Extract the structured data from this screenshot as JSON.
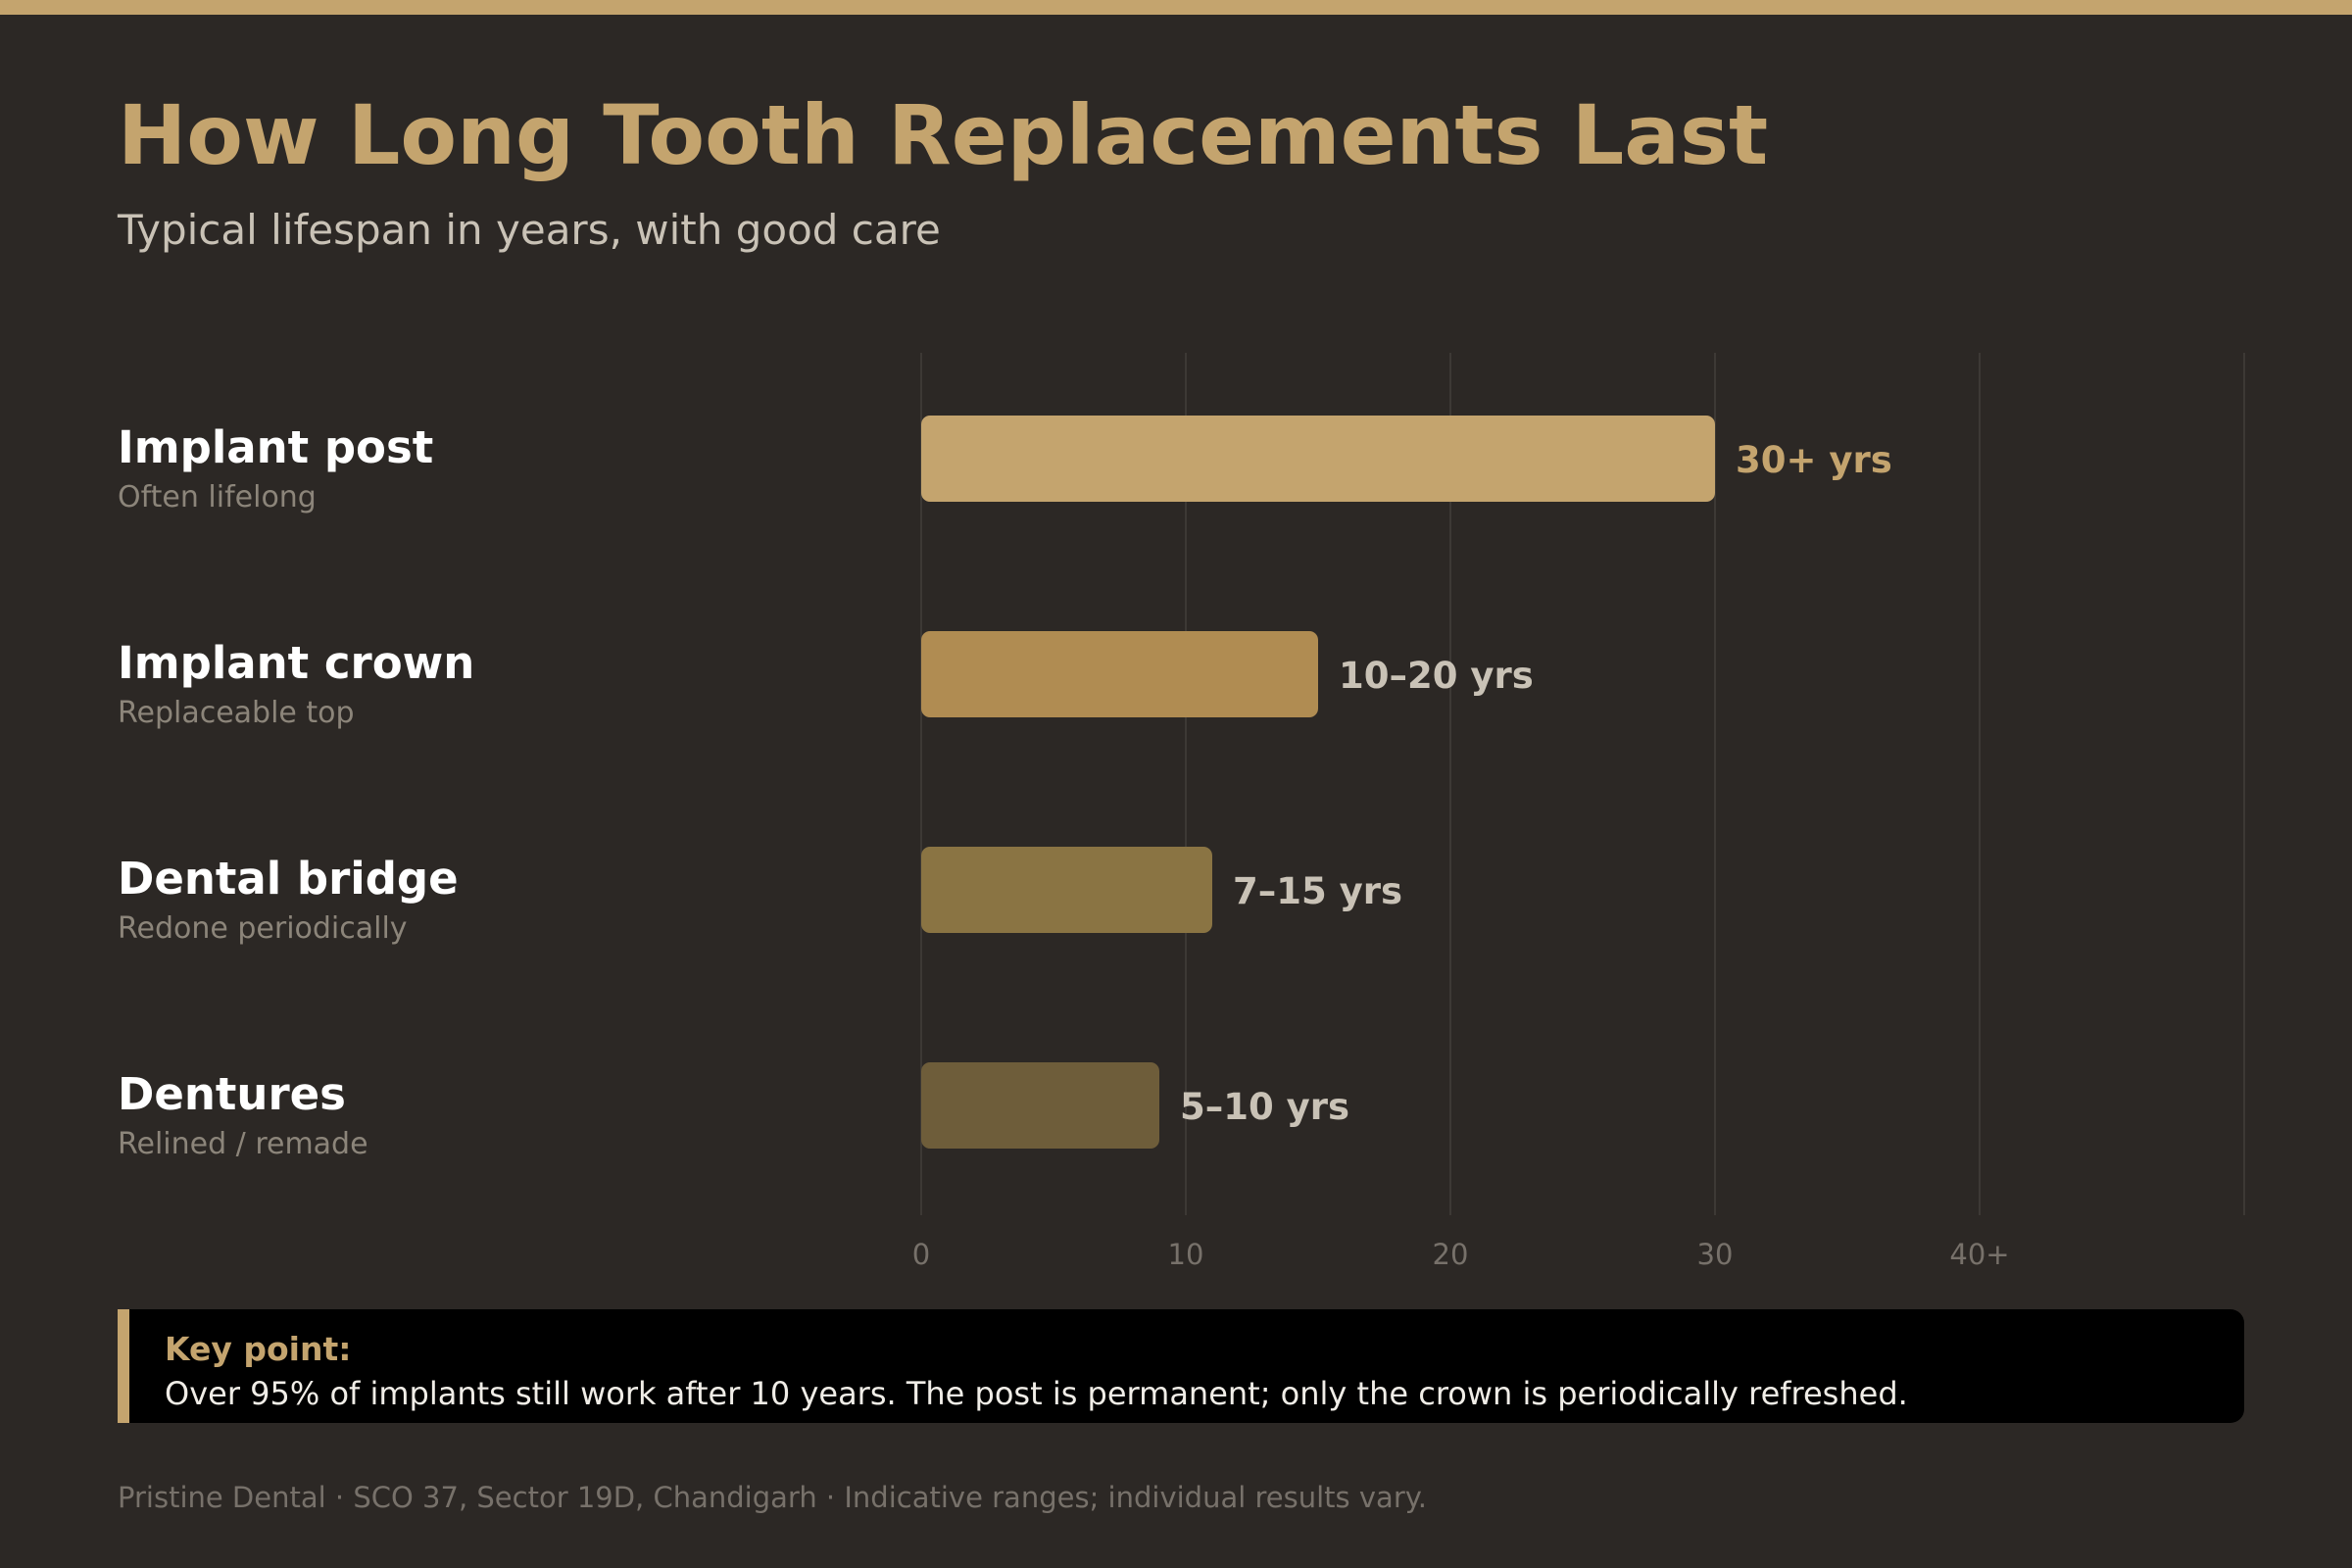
{
  "header": {
    "title": "How Long Tooth Replacements Last",
    "subtitle": "Typical lifespan in years, with good care"
  },
  "chart_data": {
    "type": "bar",
    "orientation": "horizontal",
    "title": "How Long Tooth Replacements Last",
    "subtitle": "Typical lifespan in years, with good care",
    "xlabel": "",
    "ylabel": "",
    "xlim": [
      0,
      50
    ],
    "x_ticks": [
      0,
      10,
      20,
      30,
      40
    ],
    "x_tick_labels": [
      "0",
      "10",
      "20",
      "30",
      "40+"
    ],
    "grid": true,
    "categories": [
      "Implant post",
      "Implant crown",
      "Dental bridge",
      "Dentures"
    ],
    "notes": [
      "Often lifelong",
      "Replaceable top",
      "Redone periodically",
      "Relined / remade"
    ],
    "values": [
      30,
      15,
      11,
      9
    ],
    "value_labels": [
      "30+ yrs",
      "10–20 yrs",
      "7–15 yrs",
      "5–10 yrs"
    ],
    "colors": [
      "#c4a46e",
      "#b08c52",
      "#8a7443",
      "#6e5d3a"
    ],
    "value_label_colors": [
      "#c4a46e",
      "#c9c2b6",
      "#c9c2b6",
      "#c9c2b6"
    ]
  },
  "callout": {
    "heading": "Key point:",
    "body": "Over 95% of implants still work after 10 years. The post is permanent; only the crown is periodically refreshed."
  },
  "footer": {
    "text": "Pristine Dental · SCO 37, Sector 19D, Chandigarh · Indicative ranges; individual results vary."
  }
}
